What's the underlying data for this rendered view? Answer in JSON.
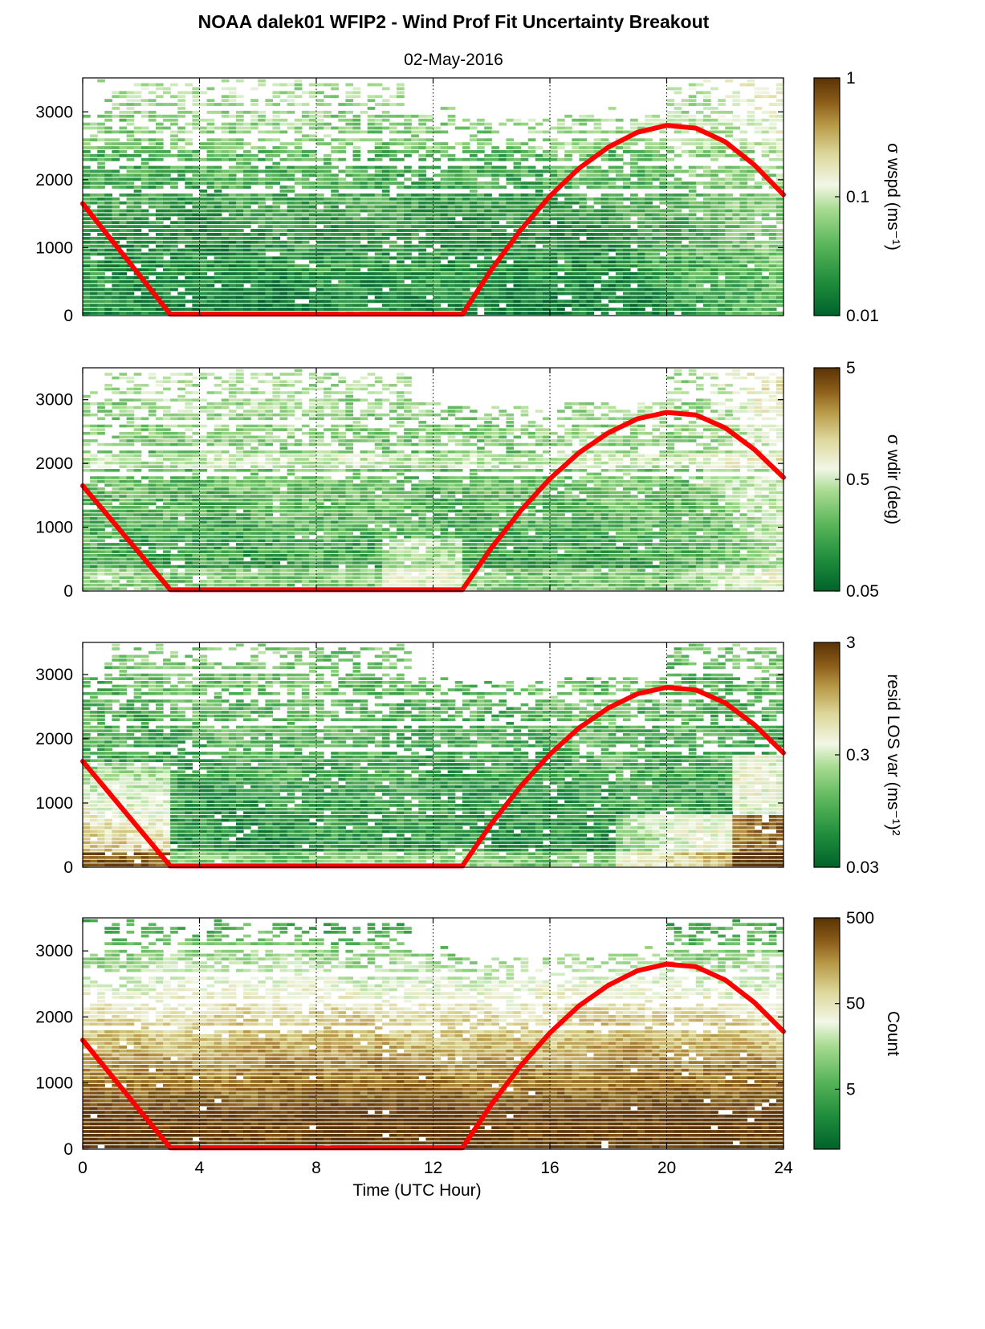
{
  "title": "NOAA dalek01 WFIP2 - Wind Prof Fit Uncertainty Breakout",
  "subtitle": "02-May-2016",
  "colors": {
    "colormap": [
      "#00622a",
      "#1e8c3c",
      "#5bb65a",
      "#a9dc92",
      "#f2f7e6",
      "#dcd79a",
      "#b99a48",
      "#8a5c18",
      "#5a3306"
    ],
    "model_line": "#ff0000"
  },
  "chart_data": [
    {
      "type": "heatmap",
      "panel": 1,
      "xlabel": "",
      "ylabel": "",
      "xlim": [
        0,
        24
      ],
      "ylim": [
        0,
        3500
      ],
      "xticks": [
        0,
        4,
        8,
        12,
        16,
        20,
        24
      ],
      "yticks": [
        0,
        1000,
        2000,
        3000
      ],
      "vertical_gridlines_dotted": [
        4,
        8,
        12,
        16,
        20,
        24
      ],
      "colorbar": {
        "label": "σ wspd (ms⁻¹)",
        "scale": "log",
        "range": [
          0.01,
          1
        ],
        "tick_labels": [
          "1",
          "0.1",
          "0.01"
        ]
      },
      "overlay_line": {
        "x": [
          0,
          3,
          13,
          14,
          15,
          16,
          17,
          18,
          19,
          20,
          21,
          22,
          23,
          24
        ],
        "y": [
          1650,
          20,
          20,
          680,
          1260,
          1760,
          2170,
          2480,
          2700,
          2800,
          2760,
          2560,
          2220,
          1780
        ]
      }
    },
    {
      "type": "heatmap",
      "panel": 2,
      "xlabel": "",
      "ylabel": "",
      "xlim": [
        0,
        24
      ],
      "ylim": [
        0,
        3500
      ],
      "xticks": [
        0,
        4,
        8,
        12,
        16,
        20,
        24
      ],
      "yticks": [
        0,
        1000,
        2000,
        3000
      ],
      "vertical_gridlines_dotted": [
        4,
        8,
        12,
        16,
        20,
        24
      ],
      "colorbar": {
        "label": "σ wdir (deg)",
        "scale": "log",
        "range": [
          0.05,
          5
        ],
        "tick_labels": [
          "5",
          "0.5",
          "0.05"
        ]
      },
      "overlay_line": {
        "x": [
          0,
          3,
          13,
          14,
          15,
          16,
          17,
          18,
          19,
          20,
          21,
          22,
          23,
          24
        ],
        "y": [
          1650,
          20,
          20,
          680,
          1260,
          1760,
          2170,
          2480,
          2700,
          2800,
          2760,
          2560,
          2220,
          1780
        ]
      }
    },
    {
      "type": "heatmap",
      "panel": 3,
      "xlabel": "",
      "ylabel": "",
      "xlim": [
        0,
        24
      ],
      "ylim": [
        0,
        3500
      ],
      "xticks": [
        0,
        4,
        8,
        12,
        16,
        20,
        24
      ],
      "yticks": [
        0,
        1000,
        2000,
        3000
      ],
      "vertical_gridlines_dotted": [
        4,
        8,
        12,
        16,
        20,
        24
      ],
      "colorbar": {
        "label": "resid LOS var (ms⁻¹)²",
        "scale": "log",
        "range": [
          0.03,
          3
        ],
        "tick_labels": [
          "3",
          "0.3",
          "0.03"
        ]
      },
      "overlay_line": {
        "x": [
          0,
          3,
          13,
          14,
          15,
          16,
          17,
          18,
          19,
          20,
          21,
          22,
          23,
          24
        ],
        "y": [
          1650,
          20,
          20,
          680,
          1260,
          1760,
          2170,
          2480,
          2700,
          2800,
          2760,
          2560,
          2220,
          1780
        ]
      }
    },
    {
      "type": "heatmap",
      "panel": 4,
      "xlabel": "Time (UTC Hour)",
      "ylabel": "",
      "xlim": [
        0,
        24
      ],
      "ylim": [
        0,
        3500
      ],
      "xticks": [
        0,
        4,
        8,
        12,
        16,
        20,
        24
      ],
      "yticks": [
        0,
        1000,
        2000,
        3000
      ],
      "vertical_gridlines_dotted": [
        4,
        8,
        12,
        16,
        20,
        24
      ],
      "colorbar": {
        "label": "Count",
        "scale": "log",
        "range": [
          1,
          500
        ],
        "tick_labels": [
          "500",
          "50",
          "5"
        ]
      },
      "overlay_line": {
        "x": [
          0,
          3,
          13,
          14,
          15,
          16,
          17,
          18,
          19,
          20,
          21,
          22,
          23,
          24
        ],
        "y": [
          1650,
          20,
          20,
          680,
          1260,
          1760,
          2170,
          2480,
          2700,
          2800,
          2760,
          2560,
          2220,
          1780
        ]
      }
    }
  ]
}
